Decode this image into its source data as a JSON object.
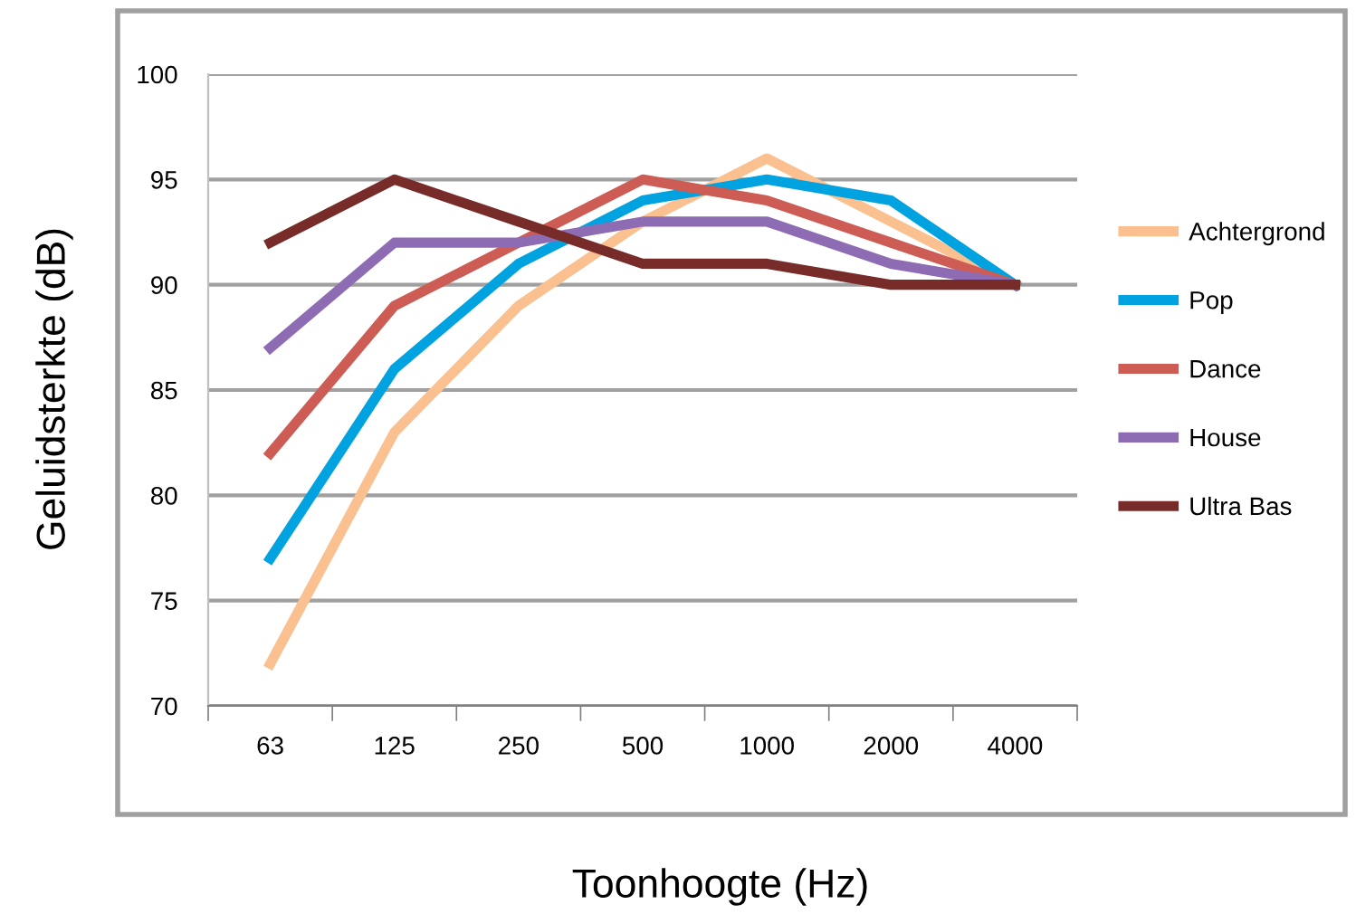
{
  "chart_data": {
    "type": "line",
    "xlabel": "Toonhoogte (Hz)",
    "ylabel": "Geluidsterkte (dB)",
    "categories": [
      "63",
      "125",
      "250",
      "500",
      "1000",
      "2000",
      "4000"
    ],
    "series": [
      {
        "name": "Achtergrond",
        "color": "#fac090",
        "values": [
          72,
          83,
          89,
          93,
          96,
          93,
          90
        ]
      },
      {
        "name": "Pop",
        "color": "#00a2e0",
        "values": [
          77,
          86,
          91,
          94,
          95,
          94,
          90
        ]
      },
      {
        "name": "Dance",
        "color": "#cd5c55",
        "values": [
          82,
          89,
          92,
          95,
          94,
          92,
          90
        ]
      },
      {
        "name": "House",
        "color": "#8e6cb4",
        "values": [
          87,
          92,
          92,
          93,
          93,
          91,
          90
        ]
      },
      {
        "name": "Ultra Bas",
        "color": "#772c2a",
        "values": [
          92,
          95,
          93,
          91,
          91,
          90,
          90
        ]
      }
    ],
    "ylim": [
      70,
      100
    ],
    "yticks": [
      70,
      75,
      80,
      85,
      90,
      95,
      100
    ],
    "grid": "y",
    "legend": "right",
    "marker": "none",
    "line_style": "solid"
  }
}
